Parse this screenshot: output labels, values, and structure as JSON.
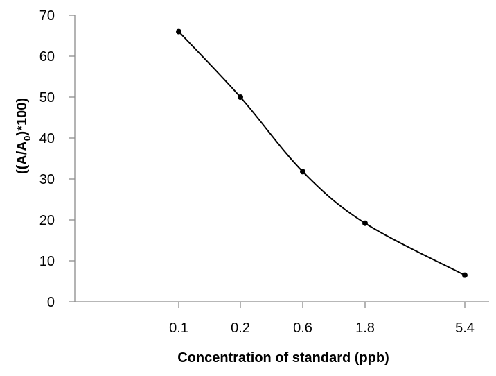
{
  "chart_data": {
    "type": "line",
    "title": "",
    "xlabel": "Concentration of standard (ppb)",
    "ylabel": {
      "prefix": "((A/A",
      "subscript": "0",
      "suffix": ")*100)"
    },
    "categories": [
      "0.1",
      "0.2",
      "0.6",
      "1.8",
      "5.4"
    ],
    "x": [
      0.1,
      0.2,
      0.6,
      1.8,
      5.4
    ],
    "x_scale": "log",
    "series": [
      {
        "values": [
          66,
          50,
          31.8,
          19.2,
          6.5
        ]
      }
    ],
    "ylim": [
      0,
      70
    ],
    "yticks": [
      "0",
      "10",
      "20",
      "30",
      "40",
      "50",
      "60",
      "70"
    ],
    "smoothed": true,
    "markers": true,
    "grid": false,
    "legend": "none",
    "colors": {
      "line": "#000000",
      "axis": "#8c8c8c"
    }
  }
}
